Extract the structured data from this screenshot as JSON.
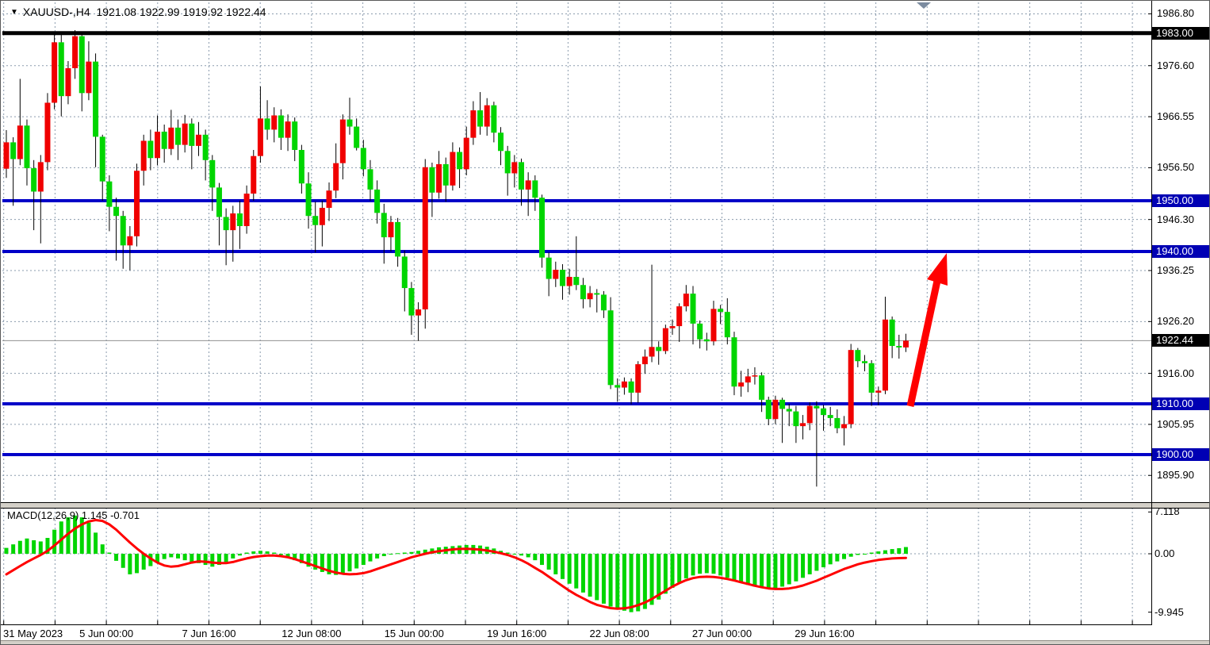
{
  "header": {
    "symbol_period": "XAUUSD-,H4",
    "ohlc_text": "1921.08 1922.99 1919.92 1922.44"
  },
  "icons": {
    "dropdown": "▼",
    "autoscroll": "▼"
  },
  "price_axis": {
    "plain_labels": [
      "1986.80",
      "1976.60",
      "1966.55",
      "1956.50",
      "1946.30",
      "1936.25",
      "1926.20",
      "1916.00",
      "1905.95",
      "1895.90"
    ]
  },
  "levels": [
    {
      "label": "1983.00",
      "price": 1983.0,
      "line_color": "#000000",
      "badge_color": "#000000",
      "line_width": 5
    },
    {
      "label": "1950.00",
      "price": 1950.0,
      "line_color": "#0000c8",
      "badge_color": "#0000b4",
      "line_width": 4
    },
    {
      "label": "1940.00",
      "price": 1940.0,
      "line_color": "#0000c8",
      "badge_color": "#0000b4",
      "line_width": 4
    },
    {
      "label": "1922.44",
      "price": 1922.44,
      "line_color": "#909090",
      "badge_color": "#000000",
      "line_width": 1
    },
    {
      "label": "1910.00",
      "price": 1910.0,
      "line_color": "#0000c8",
      "badge_color": "#0000b4",
      "line_width": 4
    },
    {
      "label": "1900.00",
      "price": 1900.0,
      "line_color": "#0000c8",
      "badge_color": "#0000b4",
      "line_width": 4
    }
  ],
  "time_axis": {
    "labels": [
      {
        "text": "31 May 2023",
        "grid": 0,
        "align": "left"
      },
      {
        "text": "5 Jun 00:00",
        "grid": 2
      },
      {
        "text": "7 Jun 16:00",
        "grid": 4
      },
      {
        "text": "12 Jun 08:00",
        "grid": 6
      },
      {
        "text": "15 Jun 00:00",
        "grid": 8
      },
      {
        "text": "19 Jun 16:00",
        "grid": 10
      },
      {
        "text": "22 Jun 08:00",
        "grid": 12
      },
      {
        "text": "27 Jun 00:00",
        "grid": 14
      },
      {
        "text": "29 Jun 16:00",
        "grid": 16
      }
    ]
  },
  "macd_panel": {
    "label": "MACD(12,26,9) 1.145 -0.701",
    "axis_labels": [
      "7.118",
      "0.00",
      "-9.945"
    ]
  },
  "colors": {
    "bull_body": "#f00000",
    "bear_body": "#00d500",
    "wick": "#000000",
    "grid": "#8a9bad",
    "hist": "#00d500",
    "signal": "#ff0000",
    "arrow": "#ff0000",
    "current_price_line": "#909090"
  },
  "chart_data": [
    {
      "type": "candlestick",
      "symbol": "XAUUSD-",
      "timeframe": "H4",
      "x_range": [
        "31 May 2023",
        "30 Jun 2023"
      ],
      "y_visible_range": [
        1890.5,
        1988.5
      ],
      "last_close": 1922.44,
      "horizontal_levels": [
        1983.0,
        1950.0,
        1940.0,
        1910.0,
        1900.0
      ],
      "ohlc": [
        [
          1956.3,
          1963.9,
          1954.5,
          1961.5
        ],
        [
          1961.5,
          1962.5,
          1949.0,
          1958.2
        ],
        [
          1958.2,
          1974.0,
          1957.0,
          1964.8
        ],
        [
          1964.8,
          1966.0,
          1953.0,
          1956.4
        ],
        [
          1956.4,
          1958.0,
          1944.2,
          1951.8
        ],
        [
          1951.8,
          1959.0,
          1941.6,
          1957.6
        ],
        [
          1957.6,
          1971.2,
          1956.0,
          1969.3
        ],
        [
          1969.3,
          1983.3,
          1968.0,
          1981.2
        ],
        [
          1981.2,
          1983.0,
          1966.6,
          1970.6
        ],
        [
          1970.6,
          1977.5,
          1969.0,
          1976.1
        ],
        [
          1976.1,
          1983.6,
          1974.0,
          1982.4
        ],
        [
          1982.4,
          1983.0,
          1967.6,
          1971.2
        ],
        [
          1971.2,
          1981.4,
          1969.8,
          1977.4
        ],
        [
          1977.4,
          1979.0,
          1956.6,
          1962.6
        ],
        [
          1962.6,
          1963.0,
          1950.0,
          1953.8
        ],
        [
          1953.8,
          1955.0,
          1944.0,
          1948.8
        ],
        [
          1948.8,
          1950.6,
          1938.2,
          1947.0
        ],
        [
          1947.0,
          1948.0,
          1936.6,
          1941.2
        ],
        [
          1941.2,
          1945.0,
          1936.3,
          1943.0
        ],
        [
          1943.0,
          1957.3,
          1941.0,
          1955.9
        ],
        [
          1955.9,
          1963.0,
          1953.0,
          1961.8
        ],
        [
          1961.8,
          1964.0,
          1956.0,
          1958.4
        ],
        [
          1958.4,
          1966.8,
          1957.0,
          1963.6
        ],
        [
          1963.6,
          1965.0,
          1957.5,
          1960.2
        ],
        [
          1960.2,
          1967.9,
          1959.0,
          1964.4
        ],
        [
          1964.4,
          1966.0,
          1958.0,
          1961.0
        ],
        [
          1961.0,
          1966.9,
          1959.5,
          1965.2
        ],
        [
          1965.2,
          1966.2,
          1956.2,
          1960.8
        ],
        [
          1960.8,
          1965.5,
          1958.8,
          1963.0
        ],
        [
          1963.0,
          1964.0,
          1954.0,
          1958.0
        ],
        [
          1958.0,
          1959.0,
          1948.0,
          1952.6
        ],
        [
          1952.6,
          1953.5,
          1941.2,
          1946.8
        ],
        [
          1946.8,
          1948.5,
          1937.3,
          1944.2
        ],
        [
          1944.2,
          1949.0,
          1938.0,
          1947.5
        ],
        [
          1947.5,
          1950.0,
          1940.5,
          1945.0
        ],
        [
          1945.0,
          1953.0,
          1943.5,
          1951.4
        ],
        [
          1951.4,
          1960.0,
          1950.0,
          1958.8
        ],
        [
          1958.8,
          1972.5,
          1957.5,
          1966.2
        ],
        [
          1966.2,
          1969.8,
          1962.0,
          1964.0
        ],
        [
          1964.0,
          1968.4,
          1961.5,
          1966.8
        ],
        [
          1966.8,
          1968.0,
          1960.0,
          1962.4
        ],
        [
          1962.4,
          1967.0,
          1959.8,
          1965.6
        ],
        [
          1965.6,
          1966.4,
          1957.8,
          1960.0
        ],
        [
          1960.0,
          1961.0,
          1951.4,
          1953.4
        ],
        [
          1953.4,
          1955.6,
          1944.5,
          1947.0
        ],
        [
          1947.0,
          1949.8,
          1939.8,
          1945.2
        ],
        [
          1945.2,
          1950.0,
          1941.0,
          1948.6
        ],
        [
          1948.6,
          1953.6,
          1946.0,
          1952.0
        ],
        [
          1952.0,
          1961.3,
          1950.5,
          1957.4
        ],
        [
          1957.4,
          1967.0,
          1954.2,
          1966.0
        ],
        [
          1966.0,
          1970.3,
          1963.0,
          1964.6
        ],
        [
          1964.6,
          1966.2,
          1959.9,
          1960.4
        ],
        [
          1960.4,
          1962.0,
          1954.8,
          1956.2
        ],
        [
          1956.2,
          1958.0,
          1950.0,
          1952.2
        ],
        [
          1952.2,
          1954.0,
          1945.5,
          1947.6
        ],
        [
          1947.6,
          1949.4,
          1937.6,
          1942.8
        ],
        [
          1942.8,
          1947.0,
          1940.0,
          1945.8
        ],
        [
          1945.8,
          1946.6,
          1937.0,
          1939.0
        ],
        [
          1939.0,
          1940.2,
          1928.2,
          1932.8
        ],
        [
          1932.8,
          1934.0,
          1923.6,
          1927.4
        ],
        [
          1927.4,
          1930.0,
          1922.4,
          1928.6
        ],
        [
          1928.6,
          1958.2,
          1924.8,
          1956.6
        ],
        [
          1956.6,
          1957.5,
          1946.8,
          1951.6
        ],
        [
          1951.6,
          1959.8,
          1950.4,
          1957.2
        ],
        [
          1957.2,
          1958.5,
          1949.8,
          1953.0
        ],
        [
          1953.0,
          1961.5,
          1952.0,
          1959.6
        ],
        [
          1959.6,
          1960.5,
          1952.5,
          1956.2
        ],
        [
          1956.2,
          1964.6,
          1955.0,
          1962.4
        ],
        [
          1962.4,
          1969.6,
          1961.0,
          1967.8
        ],
        [
          1967.8,
          1971.4,
          1963.0,
          1964.6
        ],
        [
          1964.6,
          1970.2,
          1962.8,
          1968.8
        ],
        [
          1968.8,
          1969.5,
          1961.5,
          1963.4
        ],
        [
          1963.4,
          1964.5,
          1957.0,
          1959.8
        ],
        [
          1959.8,
          1960.8,
          1951.0,
          1955.4
        ],
        [
          1955.4,
          1959.0,
          1952.6,
          1957.6
        ],
        [
          1957.6,
          1958.3,
          1949.0,
          1952.2
        ],
        [
          1952.2,
          1955.6,
          1947.0,
          1954.0
        ],
        [
          1954.0,
          1955.0,
          1948.0,
          1950.6
        ],
        [
          1950.6,
          1951.2,
          1936.8,
          1938.8
        ],
        [
          1938.8,
          1939.8,
          1931.2,
          1934.6
        ],
        [
          1934.6,
          1938.0,
          1933.0,
          1936.4
        ],
        [
          1936.4,
          1937.5,
          1930.5,
          1933.2
        ],
        [
          1933.2,
          1936.6,
          1931.5,
          1935.0
        ],
        [
          1935.0,
          1943.0,
          1932.4,
          1933.4
        ],
        [
          1933.4,
          1934.8,
          1928.8,
          1930.6
        ],
        [
          1930.6,
          1933.2,
          1929.0,
          1931.8
        ],
        [
          1931.8,
          1932.6,
          1928.0,
          1931.5
        ],
        [
          1931.5,
          1932.2,
          1926.9,
          1928.4
        ],
        [
          1928.4,
          1931.0,
          1912.9,
          1913.7
        ],
        [
          1913.7,
          1915.0,
          1910.4,
          1913.2
        ],
        [
          1913.2,
          1915.2,
          1911.8,
          1914.4
        ],
        [
          1914.4,
          1915.0,
          1909.9,
          1912.2
        ],
        [
          1912.2,
          1918.4,
          1910.2,
          1917.8
        ],
        [
          1917.8,
          1920.7,
          1915.9,
          1919.3
        ],
        [
          1919.3,
          1937.4,
          1918.2,
          1921.2
        ],
        [
          1921.2,
          1922.3,
          1917.7,
          1920.4
        ],
        [
          1920.4,
          1925.6,
          1919.8,
          1924.9
        ],
        [
          1924.9,
          1926.6,
          1923.6,
          1925.3
        ],
        [
          1925.3,
          1929.8,
          1922.2,
          1929.2
        ],
        [
          1929.2,
          1933.4,
          1928.2,
          1931.7
        ],
        [
          1931.7,
          1933.2,
          1921.7,
          1925.8
        ],
        [
          1925.8,
          1926.4,
          1920.9,
          1922.7
        ],
        [
          1922.7,
          1924.0,
          1920.5,
          1922.3
        ],
        [
          1922.3,
          1930.3,
          1921.5,
          1928.7
        ],
        [
          1928.7,
          1929.5,
          1925.7,
          1928.1
        ],
        [
          1928.1,
          1930.8,
          1921.7,
          1923.1
        ],
        [
          1923.1,
          1924.2,
          1911.7,
          1913.4
        ],
        [
          1913.4,
          1916.5,
          1911.4,
          1914.2
        ],
        [
          1914.2,
          1916.9,
          1912.3,
          1915.4
        ],
        [
          1915.4,
          1917.2,
          1913.8,
          1915.6
        ],
        [
          1915.6,
          1916.2,
          1908.4,
          1910.8
        ],
        [
          1910.8,
          1911.4,
          1905.8,
          1907.0
        ],
        [
          1907.0,
          1911.6,
          1906.0,
          1910.8
        ],
        [
          1910.8,
          1911.2,
          1902.3,
          1909.0
        ],
        [
          1909.0,
          1910.0,
          1905.6,
          1908.5
        ],
        [
          1908.5,
          1909.6,
          1902.3,
          1905.6
        ],
        [
          1905.6,
          1907.8,
          1903.0,
          1906.2
        ],
        [
          1906.2,
          1910.3,
          1904.8,
          1909.6
        ],
        [
          1909.6,
          1910.5,
          1893.7,
          1909.1
        ],
        [
          1909.1,
          1909.8,
          1904.7,
          1907.8
        ],
        [
          1907.8,
          1909.4,
          1905.6,
          1907.2
        ],
        [
          1907.2,
          1908.9,
          1904.2,
          1905.2
        ],
        [
          1905.2,
          1907.6,
          1901.8,
          1906.0
        ],
        [
          1906.0,
          1921.8,
          1905.2,
          1920.6
        ],
        [
          1920.6,
          1921.0,
          1917.2,
          1918.4
        ],
        [
          1918.4,
          1919.6,
          1916.4,
          1918.0
        ],
        [
          1918.0,
          1918.6,
          1909.6,
          1912.2
        ],
        [
          1912.2,
          1913.4,
          1909.7,
          1912.6
        ],
        [
          1912.6,
          1931.1,
          1911.9,
          1926.6
        ],
        [
          1926.6,
          1927.2,
          1919.0,
          1921.4
        ],
        [
          1921.4,
          1923.6,
          1918.9,
          1921.1
        ],
        [
          1921.1,
          1923.8,
          1920.2,
          1922.44
        ]
      ],
      "annotations": [
        {
          "type": "arrow",
          "direction": "up",
          "color": "#ff0000",
          "from_price": 1910.0,
          "to_price": 1941.0
        }
      ]
    },
    {
      "type": "bar",
      "name": "MACD(12,26,9)",
      "last_values": {
        "macd": 1.145,
        "signal": -0.701
      },
      "ylim": [
        -9.945,
        7.118
      ],
      "histogram": [
        1.0,
        1.6,
        2.2,
        2.6,
        2.3,
        2.1,
        2.7,
        4.1,
        5.5,
        6.2,
        6.5,
        6.2,
        5.3,
        3.6,
        1.6,
        0.2,
        -1.2,
        -2.4,
        -3.5,
        -3.3,
        -2.7,
        -2.1,
        -1.5,
        -0.9,
        -0.6,
        -0.8,
        -1.1,
        -1.4,
        -1.6,
        -1.9,
        -2.2,
        -1.9,
        -1.4,
        -0.8,
        -0.3,
        0.2,
        0.4,
        0.5,
        0.4,
        0.2,
        -0.2,
        -0.6,
        -1.1,
        -1.6,
        -2.2,
        -2.7,
        -3.1,
        -3.5,
        -3.6,
        -3.4,
        -3.0,
        -2.5,
        -1.9,
        -1.3,
        -0.8,
        -0.4,
        -0.1,
        0.1,
        0.2,
        0.3,
        0.5,
        0.7,
        0.9,
        1.1,
        1.2,
        1.3,
        1.4,
        1.5,
        1.5,
        1.4,
        1.2,
        0.9,
        0.5,
        0.2,
        -0.1,
        -0.3,
        -0.6,
        -1.1,
        -1.9,
        -2.7,
        -3.5,
        -4.3,
        -5.1,
        -5.9,
        -6.6,
        -7.3,
        -7.9,
        -8.5,
        -9.0,
        -9.4,
        -9.7,
        -9.945,
        -9.8,
        -9.4,
        -8.7,
        -7.8,
        -6.8,
        -5.8,
        -4.9,
        -4.2,
        -3.7,
        -3.4,
        -3.3,
        -3.4,
        -3.7,
        -4.1,
        -4.5,
        -4.9,
        -5.3,
        -5.6,
        -5.8,
        -5.9,
        -5.85,
        -5.6,
        -5.2,
        -4.7,
        -4.1,
        -3.5,
        -2.9,
        -2.3,
        -1.8,
        -1.3,
        -0.9,
        -0.5,
        -0.2,
        0.0,
        0.2,
        0.4,
        0.6,
        0.8,
        0.95,
        1.145
      ],
      "signal": [
        -3.5,
        -2.8,
        -2.1,
        -1.4,
        -0.8,
        -0.2,
        0.5,
        1.4,
        2.4,
        3.4,
        4.3,
        5.0,
        5.5,
        5.75,
        5.6,
        5.0,
        4.1,
        3.0,
        1.9,
        0.9,
        0.0,
        -0.8,
        -1.5,
        -2.0,
        -2.2,
        -2.1,
        -1.8,
        -1.5,
        -1.3,
        -1.35,
        -1.5,
        -1.6,
        -1.6,
        -1.4,
        -1.1,
        -0.8,
        -0.55,
        -0.4,
        -0.3,
        -0.3,
        -0.4,
        -0.6,
        -0.9,
        -1.3,
        -1.7,
        -2.1,
        -2.5,
        -2.9,
        -3.2,
        -3.4,
        -3.5,
        -3.45,
        -3.3,
        -3.0,
        -2.6,
        -2.2,
        -1.8,
        -1.4,
        -1.0,
        -0.6,
        -0.3,
        0.0,
        0.25,
        0.45,
        0.6,
        0.75,
        0.82,
        0.85,
        0.8,
        0.7,
        0.55,
        0.35,
        0.1,
        -0.2,
        -0.6,
        -1.1,
        -1.7,
        -2.4,
        -3.1,
        -3.9,
        -4.7,
        -5.5,
        -6.3,
        -7.0,
        -7.6,
        -8.2,
        -8.7,
        -9.0,
        -9.25,
        -9.35,
        -9.3,
        -9.1,
        -8.75,
        -8.3,
        -7.7,
        -7.0,
        -6.3,
        -5.6,
        -5.0,
        -4.5,
        -4.15,
        -3.95,
        -3.9,
        -3.95,
        -4.1,
        -4.3,
        -4.55,
        -4.85,
        -5.15,
        -5.45,
        -5.7,
        -5.9,
        -6.0,
        -6.0,
        -5.9,
        -5.7,
        -5.4,
        -5.0,
        -4.6,
        -4.1,
        -3.6,
        -3.1,
        -2.6,
        -2.2,
        -1.8,
        -1.5,
        -1.25,
        -1.05,
        -0.9,
        -0.8,
        -0.75,
        -0.701
      ]
    }
  ]
}
